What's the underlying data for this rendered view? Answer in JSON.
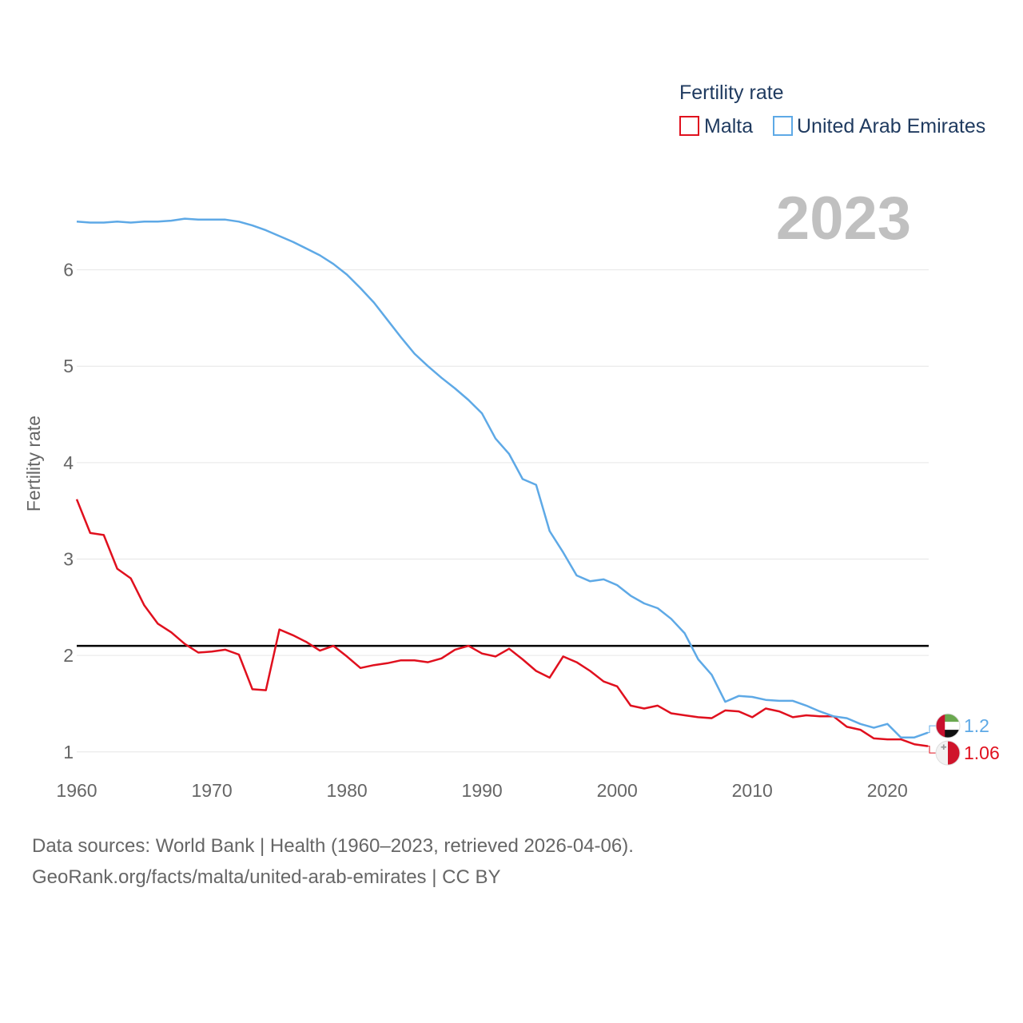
{
  "chart_data": {
    "type": "line",
    "legend_title": "Fertility rate",
    "legend_position": "top-right",
    "ylabel": "Fertility rate",
    "xlabel": "",
    "xlim": [
      1960,
      2023
    ],
    "ylim": [
      0.7,
      6.9
    ],
    "xticks": [
      "1960",
      "1970",
      "1980",
      "1990",
      "2000",
      "2010",
      "2020"
    ],
    "yticks": [
      "1",
      "2",
      "3",
      "4",
      "5",
      "6"
    ],
    "current_year": "2023",
    "reference_line": 2.1,
    "x": [
      1960,
      1961,
      1962,
      1963,
      1964,
      1965,
      1966,
      1967,
      1968,
      1969,
      1970,
      1971,
      1972,
      1973,
      1974,
      1975,
      1976,
      1977,
      1978,
      1979,
      1980,
      1981,
      1982,
      1983,
      1984,
      1985,
      1986,
      1987,
      1988,
      1989,
      1990,
      1991,
      1992,
      1993,
      1994,
      1995,
      1996,
      1997,
      1998,
      1999,
      2000,
      2001,
      2002,
      2003,
      2004,
      2005,
      2006,
      2007,
      2008,
      2009,
      2010,
      2011,
      2012,
      2013,
      2014,
      2015,
      2016,
      2017,
      2018,
      2019,
      2020,
      2021,
      2022,
      2023
    ],
    "series": [
      {
        "name": "Malta",
        "color": "#e0101e",
        "flag": "malta-flag",
        "end_label": "1.06",
        "values": [
          3.62,
          3.27,
          3.25,
          2.9,
          2.8,
          2.52,
          2.33,
          2.24,
          2.12,
          2.03,
          2.04,
          2.06,
          2.01,
          1.65,
          1.64,
          2.27,
          2.21,
          2.14,
          2.05,
          2.1,
          1.99,
          1.87,
          1.9,
          1.92,
          1.95,
          1.95,
          1.93,
          1.97,
          2.06,
          2.1,
          2.02,
          1.99,
          2.07,
          1.96,
          1.84,
          1.77,
          1.99,
          1.93,
          1.84,
          1.73,
          1.68,
          1.48,
          1.45,
          1.48,
          1.4,
          1.38,
          1.36,
          1.35,
          1.43,
          1.42,
          1.36,
          1.45,
          1.42,
          1.36,
          1.38,
          1.37,
          1.37,
          1.26,
          1.23,
          1.14,
          1.13,
          1.13,
          1.08,
          1.06
        ]
      },
      {
        "name": "United Arab Emirates",
        "color": "#5ea9e6",
        "flag": "uae-flag",
        "end_label": "1.2",
        "values": [
          6.5,
          6.49,
          6.49,
          6.5,
          6.49,
          6.5,
          6.5,
          6.51,
          6.53,
          6.52,
          6.52,
          6.52,
          6.5,
          6.46,
          6.41,
          6.35,
          6.29,
          6.22,
          6.15,
          6.06,
          5.95,
          5.81,
          5.66,
          5.48,
          5.3,
          5.13,
          5.0,
          4.88,
          4.77,
          4.65,
          4.51,
          4.25,
          4.09,
          3.83,
          3.77,
          3.29,
          3.07,
          2.83,
          2.77,
          2.79,
          2.73,
          2.62,
          2.54,
          2.49,
          2.38,
          2.23,
          1.96,
          1.8,
          1.52,
          1.58,
          1.57,
          1.54,
          1.53,
          1.53,
          1.48,
          1.42,
          1.37,
          1.35,
          1.29,
          1.25,
          1.29,
          1.15,
          1.15,
          1.2
        ]
      }
    ]
  },
  "footer": {
    "line1": "Data sources: World Bank | Health (1960–2023, retrieved 2026-04-06).",
    "line2": "GeoRank.org/facts/malta/united-arab-emirates | CC BY"
  }
}
